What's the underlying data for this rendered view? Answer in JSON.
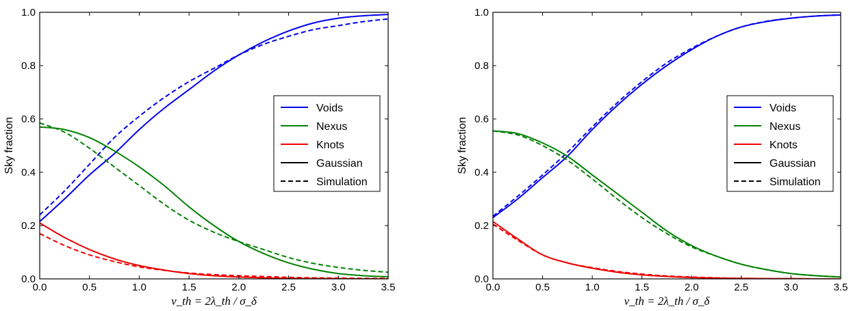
{
  "colors": {
    "voids": "#0000ee",
    "nexus": "#008000",
    "knots": "#ee0000",
    "black": "#000000"
  },
  "chart_data": [
    {
      "type": "line",
      "xlabel": "ν_th = 2λ_th / σ_δ",
      "ylabel": "Sky fraction",
      "xlim": [
        0.0,
        3.5
      ],
      "ylim": [
        0.0,
        1.0
      ],
      "xticks": [
        "0.0",
        "0.5",
        "1.0",
        "1.5",
        "2.0",
        "2.5",
        "3.0",
        "3.5"
      ],
      "yticks": [
        "0.0",
        "0.2",
        "0.4",
        "0.6",
        "0.8",
        "1.0"
      ],
      "grid": false,
      "legend_position": "right",
      "legend": [
        "Voids",
        "Nexus",
        "Knots",
        "Gaussian",
        "Simulation"
      ],
      "x": [
        0.0,
        0.25,
        0.5,
        0.75,
        1.0,
        1.25,
        1.5,
        1.75,
        2.0,
        2.25,
        2.5,
        2.75,
        3.0,
        3.25,
        3.5
      ],
      "series": [
        {
          "name": "Voids",
          "style": "Gaussian",
          "color": "#0000ee",
          "values": [
            0.215,
            0.3,
            0.39,
            0.47,
            0.56,
            0.64,
            0.71,
            0.78,
            0.84,
            0.89,
            0.93,
            0.96,
            0.978,
            0.987,
            0.992
          ]
        },
        {
          "name": "Voids",
          "style": "Simulation",
          "color": "#0000ee",
          "values": [
            0.24,
            0.33,
            0.43,
            0.53,
            0.61,
            0.68,
            0.74,
            0.79,
            0.84,
            0.88,
            0.91,
            0.935,
            0.95,
            0.965,
            0.975
          ]
        },
        {
          "name": "Nexus",
          "style": "Gaussian",
          "color": "#008000",
          "values": [
            0.57,
            0.56,
            0.53,
            0.48,
            0.42,
            0.35,
            0.27,
            0.2,
            0.14,
            0.095,
            0.06,
            0.036,
            0.02,
            0.012,
            0.008
          ]
        },
        {
          "name": "Nexus",
          "style": "Simulation",
          "color": "#008000",
          "values": [
            0.585,
            0.55,
            0.49,
            0.42,
            0.35,
            0.28,
            0.22,
            0.175,
            0.14,
            0.11,
            0.08,
            0.058,
            0.043,
            0.032,
            0.025
          ]
        },
        {
          "name": "Knots",
          "style": "Gaussian",
          "color": "#ee0000",
          "values": [
            0.21,
            0.155,
            0.11,
            0.075,
            0.05,
            0.033,
            0.02,
            0.012,
            0.007,
            0.004,
            0.002,
            0.001,
            0.001,
            0.0,
            0.0
          ]
        },
        {
          "name": "Knots",
          "style": "Simulation",
          "color": "#ee0000",
          "values": [
            0.17,
            0.125,
            0.09,
            0.065,
            0.045,
            0.032,
            0.022,
            0.016,
            0.012,
            0.009,
            0.006,
            0.004,
            0.003,
            0.002,
            0.002
          ]
        }
      ]
    },
    {
      "type": "line",
      "xlabel": "ν_th = 2λ_th / σ_δ",
      "ylabel": "Sky fraction",
      "xlim": [
        0.0,
        3.5
      ],
      "ylim": [
        0.0,
        1.0
      ],
      "xticks": [
        "0.0",
        "0.5",
        "1.0",
        "1.5",
        "2.0",
        "2.5",
        "3.0",
        "3.5"
      ],
      "yticks": [
        "0.0",
        "0.2",
        "0.4",
        "0.6",
        "0.8",
        "1.0"
      ],
      "grid": false,
      "legend_position": "right",
      "legend": [
        "Voids",
        "Nexus",
        "Knots",
        "Gaussian",
        "Simulation"
      ],
      "x": [
        0.0,
        0.25,
        0.5,
        0.75,
        1.0,
        1.25,
        1.5,
        1.75,
        2.0,
        2.25,
        2.5,
        2.75,
        3.0,
        3.25,
        3.5
      ],
      "series": [
        {
          "name": "Voids",
          "style": "Gaussian",
          "color": "#0000ee",
          "values": [
            0.23,
            0.3,
            0.38,
            0.46,
            0.56,
            0.65,
            0.73,
            0.8,
            0.86,
            0.91,
            0.945,
            0.965,
            0.978,
            0.986,
            0.99
          ]
        },
        {
          "name": "Voids",
          "style": "Simulation",
          "color": "#0000ee",
          "values": [
            0.235,
            0.31,
            0.39,
            0.475,
            0.57,
            0.66,
            0.74,
            0.81,
            0.865,
            0.91,
            0.945,
            0.966,
            0.978,
            0.986,
            0.99
          ]
        },
        {
          "name": "Nexus",
          "style": "Gaussian",
          "color": "#008000",
          "values": [
            0.555,
            0.545,
            0.51,
            0.46,
            0.39,
            0.32,
            0.25,
            0.18,
            0.125,
            0.085,
            0.055,
            0.035,
            0.02,
            0.012,
            0.007
          ]
        },
        {
          "name": "Nexus",
          "style": "Simulation",
          "color": "#008000",
          "values": [
            0.555,
            0.54,
            0.5,
            0.445,
            0.375,
            0.3,
            0.23,
            0.17,
            0.12,
            0.085,
            0.055,
            0.035,
            0.02,
            0.012,
            0.007
          ]
        },
        {
          "name": "Knots",
          "style": "Gaussian",
          "color": "#ee0000",
          "values": [
            0.215,
            0.15,
            0.09,
            0.06,
            0.04,
            0.025,
            0.015,
            0.009,
            0.005,
            0.003,
            0.002,
            0.001,
            0.001,
            0.0,
            0.0
          ]
        },
        {
          "name": "Knots",
          "style": "Simulation",
          "color": "#ee0000",
          "values": [
            0.205,
            0.145,
            0.09,
            0.06,
            0.042,
            0.028,
            0.018,
            0.011,
            0.007,
            0.004,
            0.002,
            0.001,
            0.001,
            0.0,
            0.0
          ]
        }
      ]
    }
  ]
}
